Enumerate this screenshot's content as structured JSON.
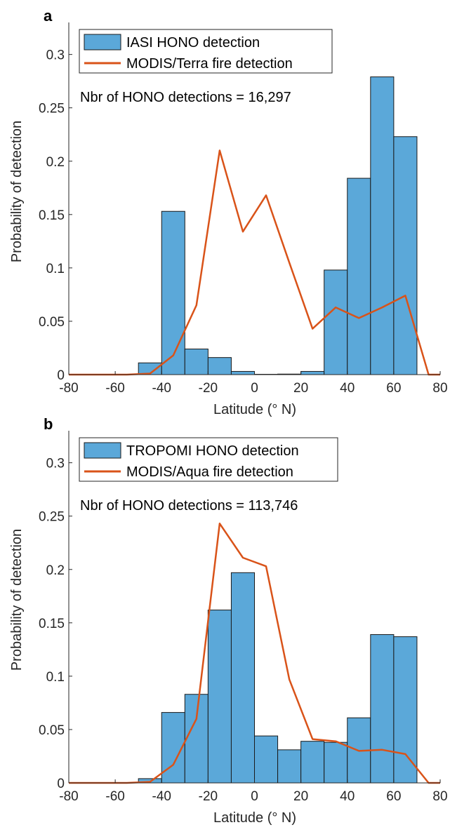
{
  "colors": {
    "bar_fill": "#5ba8d9",
    "bar_edge": "#1a1a1a",
    "line": "#d95319",
    "axis": "#262626"
  },
  "chart_data": [
    {
      "panel_letter": "a",
      "type": "bar",
      "xlabel": "Latitude (° N)",
      "ylabel": "Probability of detection",
      "xlim": [
        -80,
        80
      ],
      "ylim": [
        0,
        0.33
      ],
      "xticks": [
        "-80",
        "-60",
        "-40",
        "-20",
        "0",
        "20",
        "40",
        "60",
        "80"
      ],
      "yticks": [
        "0",
        "0.05",
        "0.1",
        "0.15",
        "0.2",
        "0.25",
        "0.3"
      ],
      "annotation": "Nbr of HONO detections = 16,297",
      "legend_position": "top-left",
      "bars": {
        "name": "IASI HONO detection",
        "bin_edges": [
          -50,
          -40,
          -30,
          -20,
          -10,
          0,
          10,
          20,
          30,
          40,
          50,
          60,
          70
        ],
        "values": [
          0.011,
          0.153,
          0.024,
          0.016,
          0.003,
          0.0003,
          0.0005,
          0.003,
          0.098,
          0.184,
          0.279,
          0.223
        ]
      },
      "line": {
        "name": "MODIS/Terra fire detection",
        "x": [
          -80,
          -75,
          -65,
          -55,
          -45,
          -35,
          -25,
          -15,
          -5,
          5,
          15,
          25,
          35,
          45,
          55,
          65,
          75,
          80
        ],
        "y": [
          0,
          0,
          0,
          0,
          0.001,
          0.018,
          0.065,
          0.21,
          0.134,
          0.168,
          0.105,
          0.043,
          0.063,
          0.053,
          0.063,
          0.074,
          0,
          0
        ]
      }
    },
    {
      "panel_letter": "b",
      "type": "bar",
      "xlabel": "Latitude (° N)",
      "ylabel": "Probability of detection",
      "xlim": [
        -80,
        80
      ],
      "ylim": [
        0,
        0.33
      ],
      "xticks": [
        "-80",
        "-60",
        "-40",
        "-20",
        "0",
        "20",
        "40",
        "60",
        "80"
      ],
      "yticks": [
        "0",
        "0.05",
        "0.1",
        "0.15",
        "0.2",
        "0.25",
        "0.3"
      ],
      "annotation": "Nbr of HONO detections = 113,746",
      "legend_position": "top-left",
      "bars": {
        "name": "TROPOMI HONO detection",
        "bin_edges": [
          -50,
          -40,
          -30,
          -20,
          -10,
          0,
          10,
          20,
          30,
          40,
          50,
          60,
          70
        ],
        "values": [
          0.004,
          0.066,
          0.083,
          0.162,
          0.197,
          0.044,
          0.031,
          0.039,
          0.038,
          0.061,
          0.139,
          0.137
        ]
      },
      "line": {
        "name": "MODIS/Aqua fire detection",
        "x": [
          -80,
          -75,
          -65,
          -55,
          -45,
          -35,
          -25,
          -15,
          -5,
          5,
          15,
          25,
          35,
          45,
          55,
          65,
          75,
          80
        ],
        "y": [
          0,
          0,
          0,
          0,
          0.001,
          0.017,
          0.06,
          0.243,
          0.211,
          0.203,
          0.097,
          0.041,
          0.039,
          0.03,
          0.031,
          0.027,
          0,
          0
        ]
      }
    }
  ]
}
